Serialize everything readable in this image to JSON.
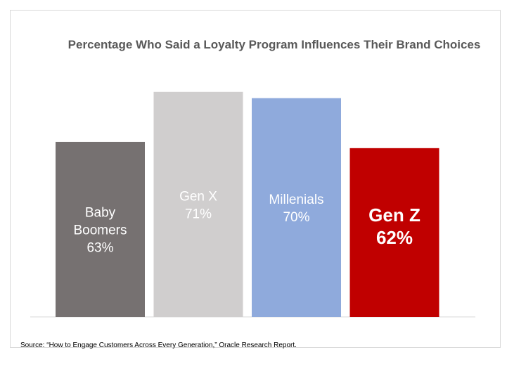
{
  "chart_data": {
    "type": "bar",
    "title": "Percentage Who Said a Loyalty Program Influences Their Brand Choices",
    "categories": [
      "Baby Boomers",
      "Gen X",
      "Millenials",
      "Gen Z"
    ],
    "category_lines": [
      [
        "Baby",
        "Boomers"
      ],
      [
        "Gen X"
      ],
      [
        "Millenials"
      ],
      [
        "Gen Z"
      ]
    ],
    "values": [
      63,
      71,
      70,
      62
    ],
    "value_labels": [
      "63%",
      "71%",
      "70%",
      "62%"
    ],
    "ylim": [
      35,
      73
    ],
    "xlabel": "",
    "ylabel": "",
    "grid": false,
    "legend": "none",
    "colors": [
      "#767171",
      "#d0cece",
      "#8faadc",
      "#c00000"
    ],
    "label_colors": [
      "#ffffff",
      "#ffffff",
      "#ffffff",
      "#ffffff"
    ],
    "highlight_index": 3
  },
  "source": "Source: “How to Engage Customers Across Every Generation,” Oracle Research Report."
}
